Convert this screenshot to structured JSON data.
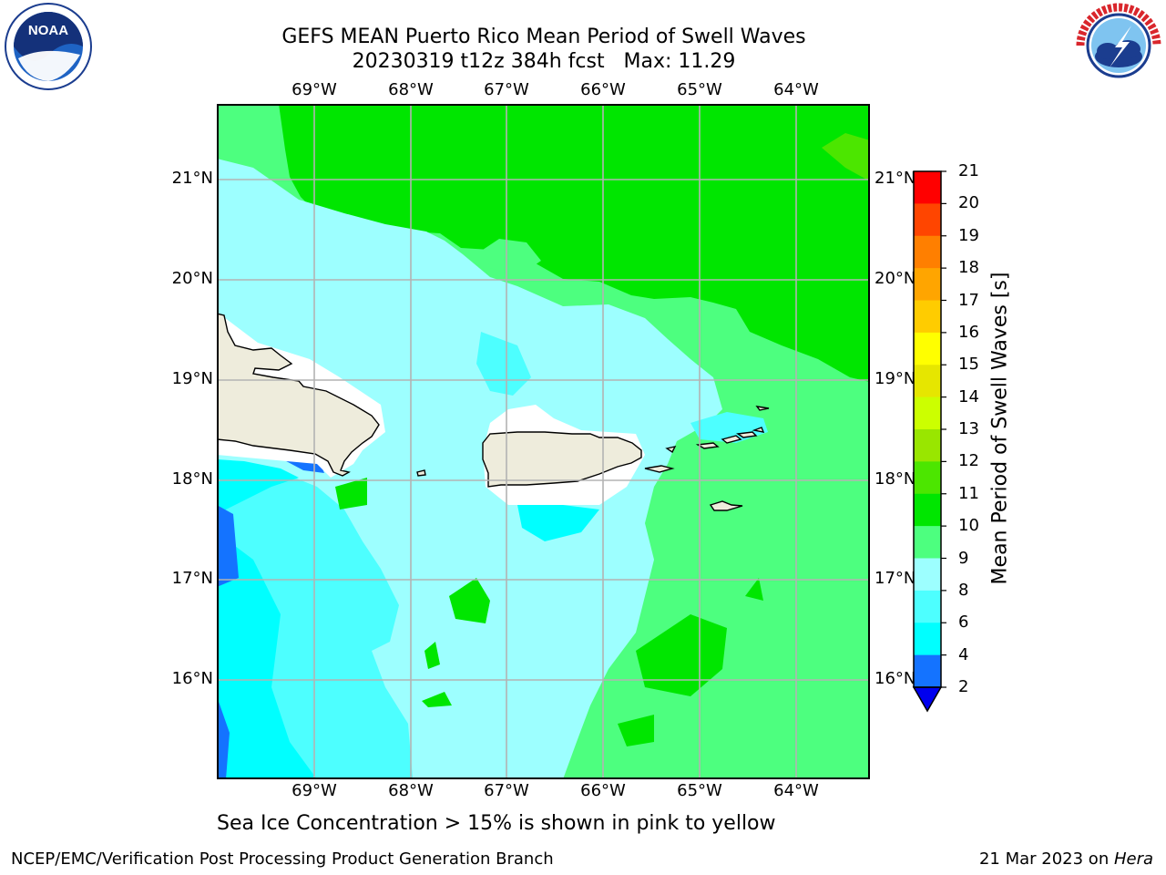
{
  "title_line1": "GEFS MEAN Puerto Rico Mean Period of Swell Waves",
  "title_line2": "20230319 t12z 384h fcst   Max: 11.29",
  "lon_labels": [
    "69°W",
    "68°W",
    "67°W",
    "66°W",
    "65°W",
    "64°W"
  ],
  "lat_labels": [
    "21°N",
    "20°N",
    "19°N",
    "18°N",
    "17°N",
    "16°N"
  ],
  "colorbar": {
    "label": "Mean Period of Swell Waves [s]",
    "ticks": [
      "2",
      "4",
      "6",
      "8",
      "9",
      "10",
      "11",
      "12",
      "13",
      "14",
      "15",
      "16",
      "17",
      "18",
      "19",
      "20",
      "21"
    ],
    "colors": [
      "#0000ee",
      "#1473ff",
      "#00ffff",
      "#4dffff",
      "#9dffff",
      "#4dff7f",
      "#00e600",
      "#4ce600",
      "#99e600",
      "#ccff00",
      "#e6e600",
      "#ffff00",
      "#ffcc00",
      "#ffa500",
      "#ff7f00",
      "#ff4500",
      "#ff0000"
    ]
  },
  "note": "Sea Ice Concentration > 15% is shown in pink to yellow",
  "footer_left": "NCEP/EMC/Verification Post Processing Product Generation Branch",
  "footer_right_prefix": "21 Mar 2023 on ",
  "footer_right_machine": "Hera",
  "logos": {
    "left": "NOAA",
    "right": "NATIONAL WEATHER SERVICE"
  },
  "colors": {
    "land": "#eeecdc",
    "grid": "#b3b3b3"
  }
}
